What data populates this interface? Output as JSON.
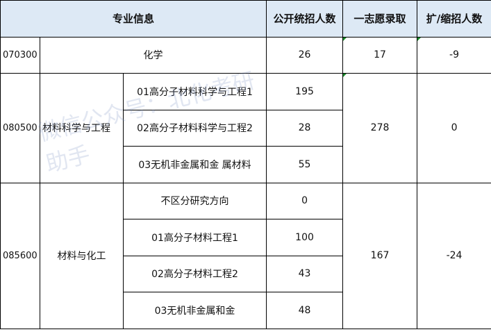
{
  "headers": {
    "major_info": "专业信息",
    "public_quota": "公开统招人数",
    "first_choice": "一志愿录取",
    "change": "扩/缩招人数"
  },
  "rows": {
    "r1": {
      "code": "070300",
      "name": "化学",
      "quota": "26",
      "first": "17",
      "change": "-9"
    },
    "r2": {
      "code": "080500",
      "name": "材料科学与工程",
      "dirs": [
        {
          "name": "01高分子材料科学与工程1",
          "quota": "195"
        },
        {
          "name": "02高分子材料科学与工程2",
          "quota": "28"
        },
        {
          "name": "03无机非金属和金 属材料",
          "quota": "55"
        }
      ],
      "first": "278",
      "change": "0"
    },
    "r3": {
      "code": "085600",
      "name": "材料与化工",
      "dirs": [
        {
          "name": "不区分研究方向",
          "quota": "0"
        },
        {
          "name": "01高分子材料工程1",
          "quota": "100"
        },
        {
          "name": "02高分子材料工程2",
          "quota": "43"
        },
        {
          "name": "03无机非金属和金",
          "quota": "48"
        }
      ],
      "first": "167",
      "change": "-24"
    }
  },
  "watermark": "微信公众号：北化考研助手",
  "colors": {
    "header_bg": "#dde9f5",
    "marker": "#1a8a2a"
  }
}
